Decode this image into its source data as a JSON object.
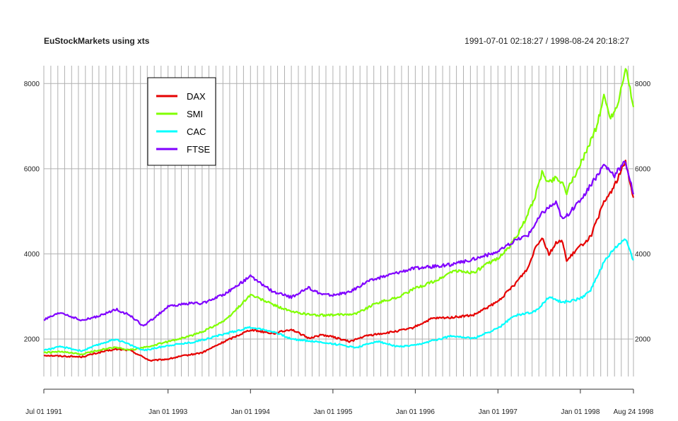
{
  "chart_data": {
    "type": "line",
    "title": "EuStockMarkets using xts",
    "date_range_label": "1991-07-01 02:18:27 / 1998-08-24 20:18:27",
    "xlabel": "",
    "ylabel": "",
    "x_ticks": [
      {
        "date": "1991-07-01",
        "label": "Jul 01 1991"
      },
      {
        "date": "1993-01-01",
        "label": "Jan 01 1993"
      },
      {
        "date": "1994-01-01",
        "label": "Jan 01 1994"
      },
      {
        "date": "1995-01-01",
        "label": "Jan 01 1995"
      },
      {
        "date": "1996-01-01",
        "label": "Jan 01 1996"
      },
      {
        "date": "1997-01-01",
        "label": "Jan 01 1997"
      },
      {
        "date": "1998-01-01",
        "label": "Jan 01 1998"
      },
      {
        "date": "1998-08-24",
        "label": "Aug 24 1998"
      }
    ],
    "y_ticks": [
      "2000",
      "4000",
      "6000",
      "8000"
    ],
    "xlim": [
      "1991-07-01",
      "1998-08-24"
    ],
    "ylim": [
      1120,
      8420
    ],
    "grid": true,
    "legend_position": "top-left",
    "series": [
      {
        "name": "DAX",
        "color": "#e60000",
        "points": [
          [
            "1991-07-01",
            1620
          ],
          [
            "1991-09-15",
            1600
          ],
          [
            "1991-12-15",
            1580
          ],
          [
            "1992-03-15",
            1700
          ],
          [
            "1992-05-15",
            1760
          ],
          [
            "1992-07-15",
            1740
          ],
          [
            "1992-10-15",
            1490
          ],
          [
            "1993-01-01",
            1530
          ],
          [
            "1993-03-15",
            1610
          ],
          [
            "1993-06-01",
            1680
          ],
          [
            "1993-09-15",
            1960
          ],
          [
            "1994-01-01",
            2220
          ],
          [
            "1994-04-15",
            2130
          ],
          [
            "1994-07-01",
            2230
          ],
          [
            "1994-09-15",
            2020
          ],
          [
            "1994-11-15",
            2100
          ],
          [
            "1995-01-01",
            2050
          ],
          [
            "1995-03-15",
            1940
          ],
          [
            "1995-06-01",
            2080
          ],
          [
            "1995-09-15",
            2160
          ],
          [
            "1995-12-15",
            2250
          ],
          [
            "1996-03-15",
            2480
          ],
          [
            "1996-06-15",
            2510
          ],
          [
            "1996-09-15",
            2560
          ],
          [
            "1997-01-01",
            2880
          ],
          [
            "1997-03-15",
            3280
          ],
          [
            "1997-05-15",
            3680
          ],
          [
            "1997-06-15",
            4150
          ],
          [
            "1997-07-15",
            4400
          ],
          [
            "1997-08-15",
            4000
          ],
          [
            "1997-09-15",
            4250
          ],
          [
            "1997-10-15",
            4300
          ],
          [
            "1997-11-01",
            3820
          ],
          [
            "1997-12-15",
            4100
          ],
          [
            "1998-02-15",
            4400
          ],
          [
            "1998-04-15",
            5200
          ],
          [
            "1998-06-01",
            5600
          ],
          [
            "1998-07-20",
            6180
          ],
          [
            "1998-08-24",
            5320
          ]
        ]
      },
      {
        "name": "SMI",
        "color": "#80ff00",
        "points": [
          [
            "1991-07-01",
            1680
          ],
          [
            "1991-09-15",
            1700
          ],
          [
            "1991-12-15",
            1640
          ],
          [
            "1992-03-15",
            1760
          ],
          [
            "1992-05-15",
            1800
          ],
          [
            "1992-07-15",
            1740
          ],
          [
            "1992-10-15",
            1830
          ],
          [
            "1993-01-01",
            1940
          ],
          [
            "1993-04-15",
            2080
          ],
          [
            "1993-06-01",
            2170
          ],
          [
            "1993-09-15",
            2450
          ],
          [
            "1994-01-01",
            3040
          ],
          [
            "1994-04-15",
            2800
          ],
          [
            "1994-07-01",
            2640
          ],
          [
            "1994-10-15",
            2560
          ],
          [
            "1995-01-01",
            2560
          ],
          [
            "1995-04-15",
            2600
          ],
          [
            "1995-07-15",
            2850
          ],
          [
            "1995-10-15",
            2980
          ],
          [
            "1996-01-01",
            3190
          ],
          [
            "1996-04-15",
            3400
          ],
          [
            "1996-06-15",
            3600
          ],
          [
            "1996-09-15",
            3560
          ],
          [
            "1996-11-15",
            3760
          ],
          [
            "1997-01-01",
            3900
          ],
          [
            "1997-02-15",
            4120
          ],
          [
            "1997-04-15",
            4600
          ],
          [
            "1997-06-15",
            5350
          ],
          [
            "1997-07-15",
            5900
          ],
          [
            "1997-08-15",
            5680
          ],
          [
            "1997-09-15",
            5800
          ],
          [
            "1997-10-15",
            5650
          ],
          [
            "1997-11-01",
            5450
          ],
          [
            "1998-01-01",
            6100
          ],
          [
            "1998-03-15",
            7000
          ],
          [
            "1998-04-15",
            7700
          ],
          [
            "1998-05-15",
            7200
          ],
          [
            "1998-06-15",
            7500
          ],
          [
            "1998-07-20",
            8400
          ],
          [
            "1998-08-24",
            7450
          ]
        ]
      },
      {
        "name": "CAC",
        "color": "#00ffff",
        "points": [
          [
            "1991-07-01",
            1740
          ],
          [
            "1991-09-15",
            1820
          ],
          [
            "1991-12-15",
            1720
          ],
          [
            "1992-03-15",
            1900
          ],
          [
            "1992-05-15",
            2000
          ],
          [
            "1992-07-15",
            1870
          ],
          [
            "1992-09-15",
            1730
          ],
          [
            "1993-01-01",
            1850
          ],
          [
            "1993-04-15",
            1920
          ],
          [
            "1993-06-01",
            1980
          ],
          [
            "1993-09-15",
            2130
          ],
          [
            "1994-01-01",
            2280
          ],
          [
            "1994-04-15",
            2170
          ],
          [
            "1994-07-01",
            2000
          ],
          [
            "1994-10-15",
            1940
          ],
          [
            "1995-01-01",
            1890
          ],
          [
            "1995-04-15",
            1800
          ],
          [
            "1995-07-15",
            1950
          ],
          [
            "1995-10-15",
            1820
          ],
          [
            "1996-01-01",
            1850
          ],
          [
            "1996-04-15",
            2000
          ],
          [
            "1996-06-15",
            2080
          ],
          [
            "1996-09-15",
            2010
          ],
          [
            "1996-11-15",
            2150
          ],
          [
            "1997-01-01",
            2250
          ],
          [
            "1997-03-15",
            2550
          ],
          [
            "1997-06-15",
            2650
          ],
          [
            "1997-08-15",
            2980
          ],
          [
            "1997-10-15",
            2860
          ],
          [
            "1998-01-01",
            2950
          ],
          [
            "1998-02-15",
            3150
          ],
          [
            "1998-04-15",
            3800
          ],
          [
            "1998-06-01",
            4120
          ],
          [
            "1998-07-20",
            4360
          ],
          [
            "1998-08-24",
            3850
          ]
        ]
      },
      {
        "name": "FTSE",
        "color": "#8000ff",
        "points": [
          [
            "1991-07-01",
            2450
          ],
          [
            "1991-09-15",
            2620
          ],
          [
            "1991-12-15",
            2430
          ],
          [
            "1992-03-15",
            2560
          ],
          [
            "1992-05-15",
            2700
          ],
          [
            "1992-07-15",
            2560
          ],
          [
            "1992-09-15",
            2300
          ],
          [
            "1993-01-01",
            2760
          ],
          [
            "1993-04-15",
            2850
          ],
          [
            "1993-06-01",
            2830
          ],
          [
            "1993-09-15",
            3080
          ],
          [
            "1994-01-01",
            3470
          ],
          [
            "1994-04-15",
            3100
          ],
          [
            "1994-07-01",
            2980
          ],
          [
            "1994-09-15",
            3200
          ],
          [
            "1994-11-15",
            3050
          ],
          [
            "1995-01-01",
            3030
          ],
          [
            "1995-03-15",
            3100
          ],
          [
            "1995-06-01",
            3350
          ],
          [
            "1995-09-15",
            3520
          ],
          [
            "1995-12-15",
            3650
          ],
          [
            "1996-03-15",
            3700
          ],
          [
            "1996-06-15",
            3750
          ],
          [
            "1996-09-15",
            3880
          ],
          [
            "1997-01-01",
            4050
          ],
          [
            "1997-03-15",
            4300
          ],
          [
            "1997-05-15",
            4450
          ],
          [
            "1997-07-15",
            4950
          ],
          [
            "1997-08-15",
            5100
          ],
          [
            "1997-09-15",
            5200
          ],
          [
            "1997-10-15",
            4800
          ],
          [
            "1997-12-15",
            5150
          ],
          [
            "1998-02-15",
            5600
          ],
          [
            "1998-04-15",
            6100
          ],
          [
            "1998-06-01",
            5850
          ],
          [
            "1998-07-20",
            6180
          ],
          [
            "1998-08-24",
            5400
          ]
        ]
      }
    ]
  }
}
